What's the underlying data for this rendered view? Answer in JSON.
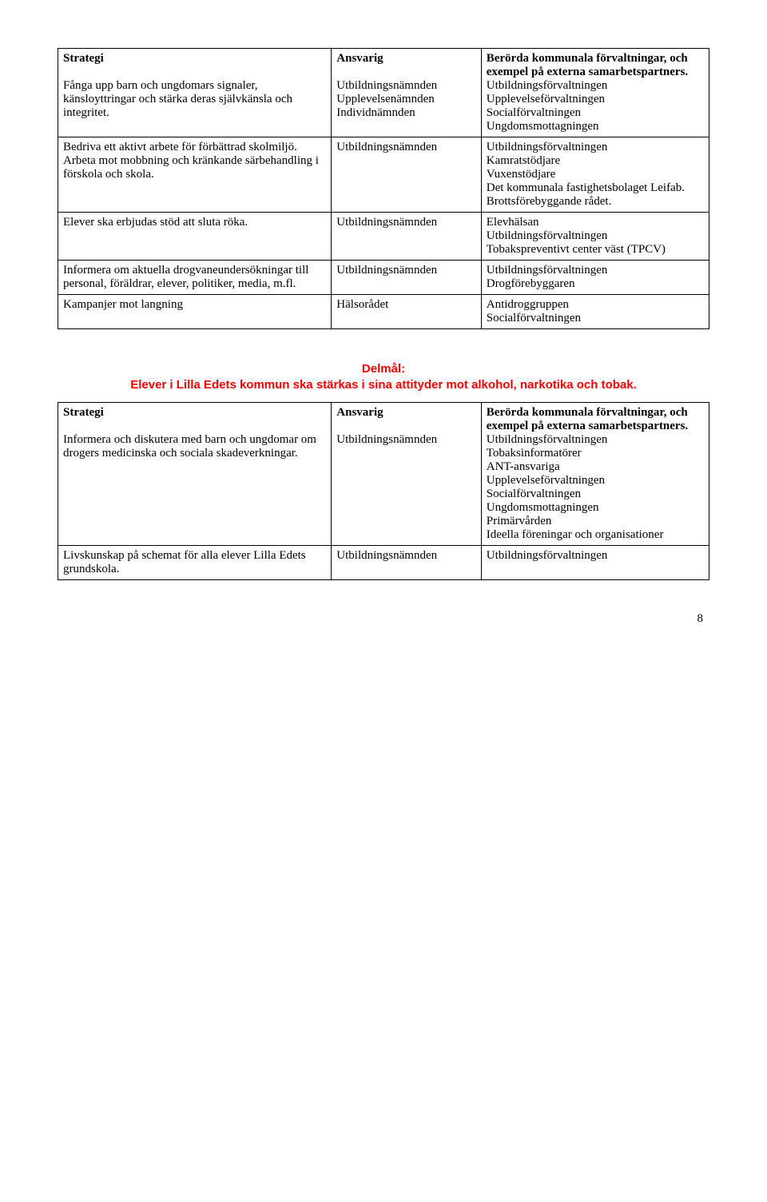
{
  "table1": {
    "rows": [
      {
        "c1_bold": "Strategi",
        "c1_rest": "Fånga upp barn och ungdomars signaler, känsloyttringar och stärka deras självkänsla och integritet.",
        "c2_bold": "Ansvarig",
        "c2_rest": "Utbildningsnämnden\nUpplevelsenämnden\nIndividnämnden",
        "c3_bold": "Berörda kommunala förvaltningar, och exempel på externa samarbetspartners.",
        "c3_rest": "Utbildningsförvaltningen\nUpplevelseförvaltningen\nSocialförvaltningen\nUngdomsmottagningen"
      },
      {
        "c1": "Bedriva ett aktivt arbete för förbättrad skolmiljö. Arbeta mot mobbning och kränkande särbehandling i förskola och skola.",
        "c2": "Utbildningsnämnden",
        "c3": "Utbildningsförvaltningen\nKamratstödjare\nVuxenstödjare\nDet kommunala fastighetsbolaget Leifab.\nBrottsförebyggande rådet."
      },
      {
        "c1": "Elever ska erbjudas stöd att sluta röka.",
        "c2": "Utbildningsnämnden",
        "c3": "Elevhälsan\nUtbildningsförvaltningen\nTobakspreventivt center väst (TPCV)"
      },
      {
        "c1": "Informera om aktuella drogvaneundersökningar till personal, föräldrar, elever, politiker, media, m.fl.",
        "c2": "Utbildningsnämnden",
        "c3": "Utbildningsförvaltningen\nDrogförebyggaren"
      },
      {
        "c1": "Kampanjer mot langning",
        "c2": "Hälsorådet",
        "c3": "Antidroggruppen\nSocialförvaltningen"
      }
    ]
  },
  "delmal": {
    "label": "Delmål:",
    "text": "Elever i Lilla Edets kommun ska stärkas i sina attityder mot alkohol, narkotika och tobak."
  },
  "table2": {
    "rows": [
      {
        "c1_bold": "Strategi",
        "c1_rest": "Informera och diskutera med barn och ungdomar om drogers medicinska och sociala skadeverkningar.",
        "c2_bold": "Ansvarig",
        "c2_rest": "Utbildningsnämnden",
        "c3_bold": "Berörda kommunala förvaltningar, och exempel på externa samarbetspartners.",
        "c3_rest": "Utbildningsförvaltningen\nTobaksinformatörer\nANT-ansvariga\nUpplevelseförvaltningen\nSocialförvaltningen\nUngdomsmottagningen\nPrimärvården\nIdeella föreningar och organisationer"
      },
      {
        "c1": "Livskunskap på schemat för alla elever Lilla Edets grundskola.",
        "c2": "Utbildningsnämnden",
        "c3": "Utbildningsförvaltningen"
      }
    ]
  },
  "page_number": "8"
}
